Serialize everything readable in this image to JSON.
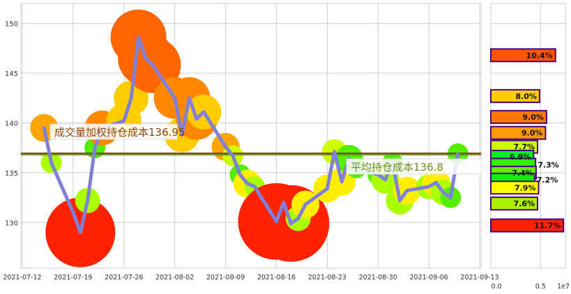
{
  "chart_data": [
    {
      "type": "line",
      "xlabel": "",
      "ylabel": "",
      "ylim": [
        125.4,
        152
      ],
      "xlim": [
        "2021-07-12",
        "2021-09-13"
      ],
      "grid": true,
      "yticks": [
        130,
        135,
        140,
        145,
        150
      ],
      "xticks": [
        "2021-07-12",
        "2021-07-19",
        "2021-07-26",
        "2021-08-02",
        "2021-08-09",
        "2021-08-16",
        "2021-08-23",
        "2021-08-30",
        "2021-09-06",
        "2021-09-13"
      ],
      "line_color": "#8080d8",
      "x": [
        "2021-07-15",
        "2021-07-16",
        "2021-07-19",
        "2021-07-20",
        "2021-07-21",
        "2021-07-22",
        "2021-07-23",
        "2021-07-26",
        "2021-07-27",
        "2021-07-28",
        "2021-07-29",
        "2021-07-30",
        "2021-08-02",
        "2021-08-03",
        "2021-08-04",
        "2021-08-05",
        "2021-08-06",
        "2021-08-09",
        "2021-08-10",
        "2021-08-11",
        "2021-08-12",
        "2021-08-13",
        "2021-08-16",
        "2021-08-17",
        "2021-08-18",
        "2021-08-19",
        "2021-08-20",
        "2021-08-23",
        "2021-08-24",
        "2021-08-25",
        "2021-08-26",
        "2021-08-27",
        "2021-08-30",
        "2021-08-31",
        "2021-09-01",
        "2021-09-02",
        "2021-09-03",
        "2021-09-06",
        "2021-09-07",
        "2021-09-08",
        "2021-09-09",
        "2021-09-10"
      ],
      "values": [
        139.5,
        136.0,
        131.0,
        129.0,
        132.2,
        137.5,
        139.5,
        140.2,
        142.5,
        148.6,
        146.5,
        145.8,
        142.5,
        138.8,
        142.5,
        140.4,
        141.1,
        137.6,
        136.7,
        134.8,
        133.9,
        133.6,
        130.1,
        132.0,
        129.9,
        130.4,
        131.8,
        133.4,
        137.1,
        134.1,
        136.4,
        135.5,
        134.8,
        134.3,
        136.0,
        132.2,
        133.2,
        133.6,
        134.0,
        133.0,
        132.5,
        136.9
      ],
      "bubble_colors": [
        "#ffa500",
        "#aaff00",
        "#55ee00",
        "#ff2200",
        "#aaff00",
        "#55ee00",
        "#ff8800",
        "#ffcc00",
        "#ffcc00",
        "#ff6600",
        "#ff6600",
        "#ff6600",
        "#ff8800",
        "#ffcc00",
        "#ff8800",
        "#ff8800",
        "#ffcc00",
        "#ffa500",
        "#ccff00",
        "#55ee00",
        "#ffee00",
        "#aaff00",
        "#ff2200",
        "#aaff00",
        "#ff2200",
        "#aaff00",
        "#ffee00",
        "#ffee00",
        "#ccff00",
        "#ffee00",
        "#55ee00",
        "#55ee00",
        "#55ee00",
        "#aaff00",
        "#55ee00",
        "#aaff00",
        "#ffee00",
        "#aaff00",
        "#ffee00",
        "#aaff00",
        "#55ee00",
        "#55ee00"
      ],
      "bubble_sizes": [
        2,
        1.5,
        1.5,
        5,
        1.8,
        1.5,
        2.5,
        2.5,
        2.5,
        4,
        4,
        4,
        3,
        2.5,
        3,
        3,
        2.5,
        2,
        1.5,
        1.5,
        2,
        1.5,
        5.5,
        2,
        5.5,
        1.8,
        2,
        2,
        1.8,
        2,
        2,
        1.5,
        1.5,
        2,
        1.5,
        2,
        2,
        1.8,
        2,
        1.8,
        1.5,
        1.5
      ],
      "reference_lines": [
        {
          "value": 136.95,
          "label": "成交量加权持仓成本136.95",
          "color": "#8b4513"
        },
        {
          "value": 136.8,
          "label": "平均持仓成本136.8",
          "color": "#6b8e23"
        }
      ]
    },
    {
      "type": "bar",
      "orientation": "horizontal",
      "xlim": [
        0,
        0.75
      ],
      "xticks": [
        "0.0",
        "0.5"
      ],
      "x_offset_label": "1e7",
      "price_levels": [
        146.8,
        142.7,
        140.6,
        139.0,
        137.6,
        136.6,
        135.8,
        135.0,
        134.3,
        133.5,
        131.9,
        129.7
      ],
      "values": [
        0.65,
        0.49,
        0.56,
        0.55,
        0.47,
        0.43,
        0.45,
        0.455,
        0.44,
        0.48,
        0.47,
        0.73
      ],
      "labels": [
        "10.4%",
        "8.0%",
        "9.0%",
        "9.0%",
        "7.7%",
        "6.9%",
        "7.3%",
        "7.4%",
        "7.2%",
        "7.9%",
        "7.6%",
        "11.7%"
      ],
      "colors": [
        "#ff5500",
        "#ffcc00",
        "#ff7700",
        "#ff9900",
        "#ccff00",
        "#00ee22",
        "#33ee00",
        "#66ee00",
        "#11ee00",
        "#ffff00",
        "#aaee00",
        "#ff2200"
      ],
      "edge_color": "#4b0082"
    }
  ]
}
